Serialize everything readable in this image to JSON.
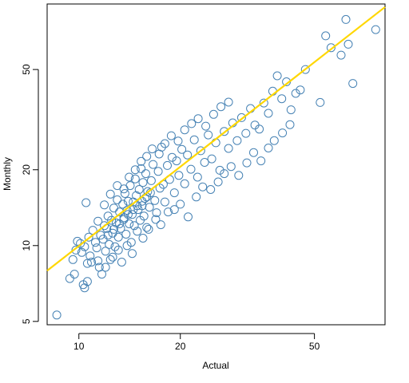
{
  "chart_data": {
    "type": "scatter",
    "title": "",
    "xlabel": "Actual",
    "ylabel": "Monthly",
    "x_scale": "log",
    "y_scale": "log",
    "xlim": [
      8.05,
      81
    ],
    "ylim": [
      4.85,
      91
    ],
    "xticks": [
      10,
      20,
      50
    ],
    "yticks": [
      5,
      10,
      20,
      50
    ],
    "grid": false,
    "legend": "none",
    "colors": {
      "points": "#4682b4",
      "fit_line": "#ffd700",
      "frame": "#000000"
    },
    "fit_line": {
      "x": [
        8.05,
        81
      ],
      "y": [
        7.95,
        88.5
      ]
    },
    "series": [
      {
        "marker": "open-circle",
        "points": [
          [
            8.6,
            5.3
          ],
          [
            9.4,
            7.4
          ],
          [
            9.7,
            7.7
          ],
          [
            10.3,
            7.0
          ],
          [
            10.4,
            6.8
          ],
          [
            10.6,
            7.2
          ],
          [
            9.6,
            8.8
          ],
          [
            9.8,
            9.6
          ],
          [
            9.9,
            10.4
          ],
          [
            10.1,
            10.2
          ],
          [
            10.2,
            9.4
          ],
          [
            10.4,
            9.9
          ],
          [
            10.5,
            14.8
          ],
          [
            10.6,
            8.5
          ],
          [
            10.7,
            10.8
          ],
          [
            10.8,
            9.1
          ],
          [
            10.9,
            8.6
          ],
          [
            11.0,
            11.5
          ],
          [
            11.2,
            10.3
          ],
          [
            11.3,
            9.8
          ],
          [
            11.4,
            12.5
          ],
          [
            11.5,
            8.2
          ],
          [
            11.6,
            11.0
          ],
          [
            11.7,
            7.7
          ],
          [
            11.8,
            10.6
          ],
          [
            11.9,
            12.0
          ],
          [
            12.0,
            9.5
          ],
          [
            12.1,
            11.7
          ],
          [
            12.2,
            13.1
          ],
          [
            12.3,
            10.1
          ],
          [
            12.4,
            8.8
          ],
          [
            12.5,
            12.6
          ],
          [
            12.6,
            11.2
          ],
          [
            12.7,
            14.1
          ],
          [
            12.8,
            9.9
          ],
          [
            12.9,
            12.3
          ],
          [
            13.0,
            15.2
          ],
          [
            13.1,
            10.8
          ],
          [
            13.2,
            13.6
          ],
          [
            13.3,
            11.7
          ],
          [
            13.4,
            8.6
          ],
          [
            13.5,
            14.6
          ],
          [
            13.6,
            12.9
          ],
          [
            13.7,
            16.1
          ],
          [
            13.8,
            11.1
          ],
          [
            13.9,
            13.8
          ],
          [
            14.0,
            15.0
          ],
          [
            14.1,
            12.2
          ],
          [
            14.2,
            17.3
          ],
          [
            14.3,
            10.3
          ],
          [
            14.4,
            13.3
          ],
          [
            14.5,
            14.9
          ],
          [
            14.6,
            12.0
          ],
          [
            14.7,
            18.4
          ],
          [
            14.8,
            15.8
          ],
          [
            14.9,
            11.4
          ],
          [
            15.0,
            13.9
          ],
          [
            15.1,
            16.7
          ],
          [
            15.2,
            12.6
          ],
          [
            15.3,
            20.2
          ],
          [
            15.4,
            14.4
          ],
          [
            15.5,
            17.8
          ],
          [
            15.6,
            13.1
          ],
          [
            15.7,
            15.4
          ],
          [
            15.8,
            19.3
          ],
          [
            15.9,
            11.8
          ],
          [
            16.0,
            16.4
          ],
          [
            16.2,
            14.2
          ],
          [
            16.4,
            18.1
          ],
          [
            16.6,
            21.0
          ],
          [
            16.8,
            15.1
          ],
          [
            17.0,
            13.5
          ],
          [
            17.2,
            19.7
          ],
          [
            17.4,
            16.9
          ],
          [
            17.6,
            24.6
          ],
          [
            17.8,
            17.5
          ],
          [
            18.0,
            14.9
          ],
          [
            18.3,
            20.8
          ],
          [
            18.6,
            18.3
          ],
          [
            18.9,
            22.4
          ],
          [
            19.2,
            16.2
          ],
          [
            19.5,
            21.7
          ],
          [
            19.8,
            19.0
          ],
          [
            20.2,
            24.1
          ],
          [
            20.6,
            17.6
          ],
          [
            21.0,
            22.9
          ],
          [
            21.5,
            20.1
          ],
          [
            22.0,
            26.3
          ],
          [
            22.5,
            18.7
          ],
          [
            23.0,
            23.8
          ],
          [
            23.6,
            21.4
          ],
          [
            24.2,
            27.5
          ],
          [
            24.8,
            22.1
          ],
          [
            25.5,
            25.6
          ],
          [
            26.2,
            19.9
          ],
          [
            27.0,
            28.4
          ],
          [
            27.8,
            24.3
          ],
          [
            28.6,
            30.7
          ],
          [
            29.5,
            26.1
          ],
          [
            30.4,
            32.2
          ],
          [
            31.3,
            27.9
          ],
          [
            32.3,
            35.0
          ],
          [
            33.3,
            30.1
          ],
          [
            34.3,
            29.0
          ],
          [
            35.4,
            36.8
          ],
          [
            36.5,
            33.5
          ],
          [
            37.6,
            41.0
          ],
          [
            38.8,
            47.2
          ],
          [
            40.0,
            38.3
          ],
          [
            41.3,
            44.7
          ],
          [
            42.6,
            34.6
          ],
          [
            44.0,
            40.2
          ],
          [
            45.4,
            41.5
          ],
          [
            47.0,
            50.0
          ],
          [
            52.0,
            37.0
          ],
          [
            54.0,
            68.0
          ],
          [
            56.0,
            61.0
          ],
          [
            60.0,
            57.0
          ],
          [
            62.0,
            79.0
          ],
          [
            63.0,
            63.0
          ],
          [
            65.0,
            44.0
          ],
          [
            76.0,
            72.0
          ],
          [
            11.4,
            8.7
          ],
          [
            12.0,
            8.2
          ],
          [
            12.6,
            9.0
          ],
          [
            13.1,
            9.6
          ],
          [
            13.9,
            10.0
          ],
          [
            14.4,
            9.3
          ],
          [
            15.5,
            10.7
          ],
          [
            16.1,
            11.6
          ],
          [
            16.9,
            12.7
          ],
          [
            17.5,
            12.1
          ],
          [
            18.4,
            13.6
          ],
          [
            19.2,
            13.9
          ],
          [
            20.0,
            14.6
          ],
          [
            21.1,
            13.0
          ],
          [
            22.3,
            15.6
          ],
          [
            23.3,
            17.1
          ],
          [
            24.6,
            16.7
          ],
          [
            25.9,
            17.9
          ],
          [
            27.0,
            19.3
          ],
          [
            28.3,
            20.6
          ],
          [
            29.8,
            19.0
          ],
          [
            31.5,
            21.3
          ],
          [
            33.0,
            23.4
          ],
          [
            34.7,
            21.7
          ],
          [
            36.5,
            24.4
          ],
          [
            38.0,
            26.1
          ],
          [
            40.2,
            28.0
          ],
          [
            42.3,
            30.2
          ],
          [
            11.9,
            14.5
          ],
          [
            12.4,
            16.0
          ],
          [
            13.0,
            17.3
          ],
          [
            13.6,
            16.8
          ],
          [
            14.1,
            18.7
          ],
          [
            14.7,
            20.0
          ],
          [
            15.3,
            21.6
          ],
          [
            15.9,
            22.6
          ],
          [
            16.5,
            24.2
          ],
          [
            17.3,
            23.1
          ],
          [
            18.0,
            25.4
          ],
          [
            18.8,
            27.3
          ],
          [
            19.7,
            26.0
          ],
          [
            20.6,
            28.8
          ],
          [
            21.6,
            30.5
          ],
          [
            22.6,
            31.9
          ],
          [
            23.8,
            29.8
          ],
          [
            25.1,
            33.2
          ],
          [
            26.4,
            35.6
          ],
          [
            27.8,
            37.1
          ],
          [
            12.2,
            11.0
          ],
          [
            12.7,
            11.6
          ],
          [
            13.2,
            12.2
          ],
          [
            13.6,
            12.7
          ],
          [
            14.0,
            13.3
          ],
          [
            14.5,
            13.9
          ],
          [
            14.9,
            14.4
          ],
          [
            15.4,
            15.0
          ],
          [
            15.9,
            15.6
          ],
          [
            16.3,
            16.2
          ]
        ]
      }
    ]
  }
}
